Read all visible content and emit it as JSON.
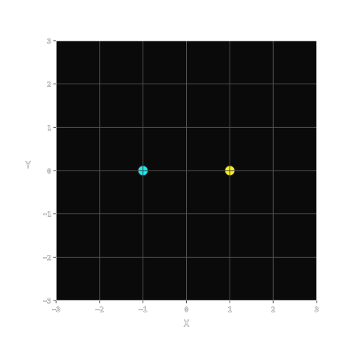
{
  "chart_data": {
    "type": "scatter",
    "title": "",
    "xlabel": "X",
    "ylabel": "Y",
    "xlim": [
      -3,
      3
    ],
    "ylim": [
      -3,
      3
    ],
    "x_ticks": [
      -3,
      -2,
      -1,
      0,
      1,
      2,
      3
    ],
    "y_ticks": [
      -3,
      -2,
      -1,
      0,
      1,
      2,
      3
    ],
    "x_tick_labels": [
      "−3",
      "−2",
      "−1",
      "0",
      "1",
      "2",
      "3"
    ],
    "y_tick_labels": [
      "−3",
      "−2",
      "−1",
      "0",
      "1",
      "2",
      "3"
    ],
    "grid": true,
    "background_color": "#0a0a0a",
    "grid_color": "#555555",
    "points": [
      {
        "x": -1,
        "y": 0,
        "color": "#1de8f0",
        "marker": "circle-crosshair"
      },
      {
        "x": 1,
        "y": 0,
        "color": "#f7ee23",
        "marker": "circle-crosshair"
      }
    ]
  }
}
